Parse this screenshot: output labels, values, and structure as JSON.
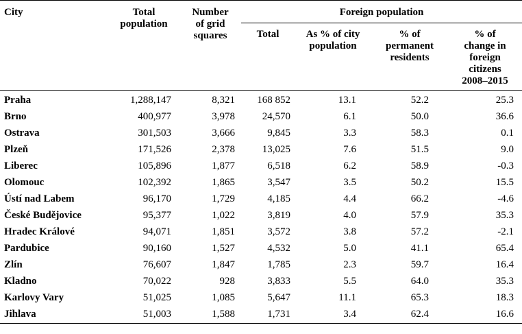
{
  "header": {
    "city": "City",
    "total_population": [
      "Total",
      "population"
    ],
    "grid_squares": [
      "Number",
      "of grid",
      "squares"
    ],
    "foreign_population": "Foreign population",
    "sub": {
      "total": "Total",
      "pct_city": [
        "As % of city",
        "population"
      ],
      "pct_permanent": [
        "% of",
        "permanent",
        "residents"
      ],
      "pct_change": [
        "% of",
        "change in",
        "foreign",
        "citizens",
        "2008–2015"
      ]
    }
  },
  "rows": [
    {
      "city": "Praha",
      "total_population": "1,288,147",
      "grid_squares": "8,321",
      "foreign_total": "168 852",
      "pct_city": "13.1",
      "pct_permanent": "52.2",
      "pct_change": "25.3"
    },
    {
      "city": "Brno",
      "total_population": "400,977",
      "grid_squares": "3,978",
      "foreign_total": "24,570",
      "pct_city": "6.1",
      "pct_permanent": "50.0",
      "pct_change": "36.6"
    },
    {
      "city": "Ostrava",
      "total_population": "301,503",
      "grid_squares": "3,666",
      "foreign_total": "9,845",
      "pct_city": "3.3",
      "pct_permanent": "58.3",
      "pct_change": "0.1"
    },
    {
      "city": "Plzeň",
      "total_population": "171,526",
      "grid_squares": "2,378",
      "foreign_total": "13,025",
      "pct_city": "7.6",
      "pct_permanent": "51.5",
      "pct_change": "9.0"
    },
    {
      "city": "Liberec",
      "total_population": "105,896",
      "grid_squares": "1,877",
      "foreign_total": "6,518",
      "pct_city": "6.2",
      "pct_permanent": "58.9",
      "pct_change": "-0.3"
    },
    {
      "city": "Olomouc",
      "total_population": "102,392",
      "grid_squares": "1,865",
      "foreign_total": "3,547",
      "pct_city": "3.5",
      "pct_permanent": "50.2",
      "pct_change": "15.5"
    },
    {
      "city": "Ústí nad Labem",
      "total_population": "96,170",
      "grid_squares": "1,729",
      "foreign_total": "4,185",
      "pct_city": "4.4",
      "pct_permanent": "66.2",
      "pct_change": "-4.6"
    },
    {
      "city": "České Budějovice",
      "total_population": "95,377",
      "grid_squares": "1,022",
      "foreign_total": "3,819",
      "pct_city": "4.0",
      "pct_permanent": "57.9",
      "pct_change": "35.3"
    },
    {
      "city": "Hradec Králové",
      "total_population": "94,071",
      "grid_squares": "1,851",
      "foreign_total": "3,572",
      "pct_city": "3.8",
      "pct_permanent": "57.2",
      "pct_change": "-2.1"
    },
    {
      "city": "Pardubice",
      "total_population": "90,160",
      "grid_squares": "1,527",
      "foreign_total": "4,532",
      "pct_city": "5.0",
      "pct_permanent": "41.1",
      "pct_change": "65.4"
    },
    {
      "city": "Zlín",
      "total_population": "76,607",
      "grid_squares": "1,847",
      "foreign_total": "1,785",
      "pct_city": "2.3",
      "pct_permanent": "59.7",
      "pct_change": "16.4"
    },
    {
      "city": "Kladno",
      "total_population": "70,022",
      "grid_squares": "928",
      "foreign_total": "3,833",
      "pct_city": "5.5",
      "pct_permanent": "64.0",
      "pct_change": "35.3"
    },
    {
      "city": "Karlovy Vary",
      "total_population": "51,025",
      "grid_squares": "1,085",
      "foreign_total": "5,647",
      "pct_city": "11.1",
      "pct_permanent": "65.3",
      "pct_change": "18.3"
    },
    {
      "city": "Jihlava",
      "total_population": "51,003",
      "grid_squares": "1,588",
      "foreign_total": "1,731",
      "pct_city": "3.4",
      "pct_permanent": "62.4",
      "pct_change": "16.6"
    }
  ]
}
